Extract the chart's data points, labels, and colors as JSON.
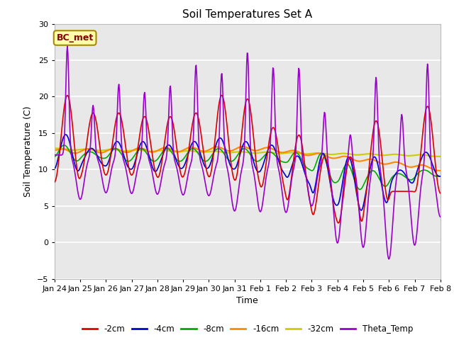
{
  "title": "Soil Temperatures Set A",
  "xlabel": "Time",
  "ylabel": "Soil Temperature (C)",
  "ylim": [
    -5,
    30
  ],
  "yticks": [
    -5,
    0,
    5,
    10,
    15,
    20,
    25,
    30
  ],
  "xtick_labels": [
    "Jan 24",
    "Jan 25",
    "Jan 26",
    "Jan 27",
    "Jan 28",
    "Jan 29",
    "Jan 30",
    "Jan 31",
    "Feb 1",
    "Feb 2",
    "Feb 3",
    "Feb 4",
    "Feb 5",
    "Feb 6",
    "Feb 7",
    "Feb 8"
  ],
  "colors": {
    "2cm": "#dd0000",
    "4cm": "#0000cc",
    "8cm": "#00aa00",
    "16cm": "#ff8800",
    "32cm": "#cccc00",
    "theta": "#9900cc"
  },
  "bg_color": "#e8e8e8",
  "fig_bg": "#ffffff",
  "annotation_text": "BC_met",
  "annotation_bg": "#ffffaa",
  "annotation_border": "#aa8800",
  "annotation_text_color": "#880000",
  "legend_labels": [
    "-2cm",
    "-4cm",
    "-8cm",
    "-16cm",
    "-32cm",
    "Theta_Temp"
  ]
}
